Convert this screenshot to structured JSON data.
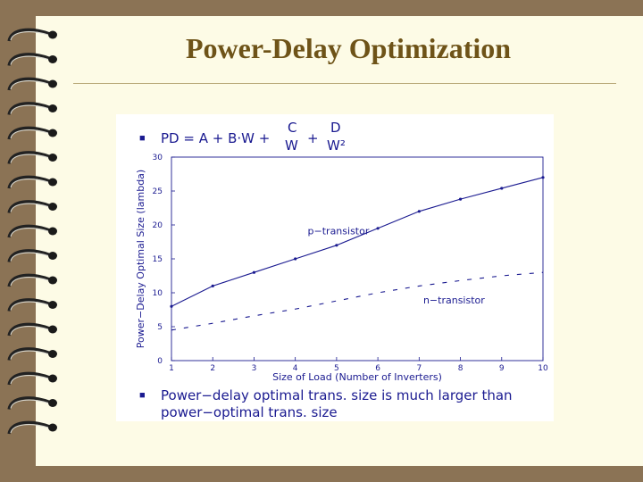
{
  "slide": {
    "title": "Power-Delay Optimization",
    "formula": {
      "lhs": "PD  =  A + B·W +",
      "frac1_num": "C",
      "frac1_den": "W",
      "plus": "+",
      "frac2_num": "D",
      "frac2_den": "W²"
    },
    "note_line1": "Power−delay optimal trans. size is much larger than",
    "note_line2": "power−optimal trans. size",
    "bullet": "■"
  },
  "colors": {
    "background": "#8b7355",
    "paper": "#fdfbe6",
    "title": "#6e5318",
    "plot_ink": "#1a1a90"
  },
  "chart_data": {
    "type": "line",
    "xlabel": "Size of Load (Number of Inverters)",
    "ylabel": "Power−Delay Optimal Size (lambda)",
    "xlim": [
      1,
      10
    ],
    "ylim": [
      0,
      30
    ],
    "xticks": [
      1,
      2,
      3,
      4,
      5,
      6,
      7,
      8,
      9,
      10
    ],
    "yticks": [
      0,
      5,
      10,
      15,
      20,
      25,
      30
    ],
    "grid": false,
    "x": [
      1,
      2,
      3,
      4,
      5,
      6,
      7,
      8,
      9,
      10
    ],
    "series": [
      {
        "name": "p−transistor",
        "style": "solid",
        "values": [
          8,
          11,
          13,
          15,
          17,
          19.5,
          22,
          23.8,
          25.4,
          27
        ]
      },
      {
        "name": "n−transistor",
        "style": "dashed",
        "values": [
          4.5,
          5.5,
          6.6,
          7.6,
          8.8,
          10,
          11,
          11.8,
          12.5,
          13
        ]
      }
    ]
  }
}
